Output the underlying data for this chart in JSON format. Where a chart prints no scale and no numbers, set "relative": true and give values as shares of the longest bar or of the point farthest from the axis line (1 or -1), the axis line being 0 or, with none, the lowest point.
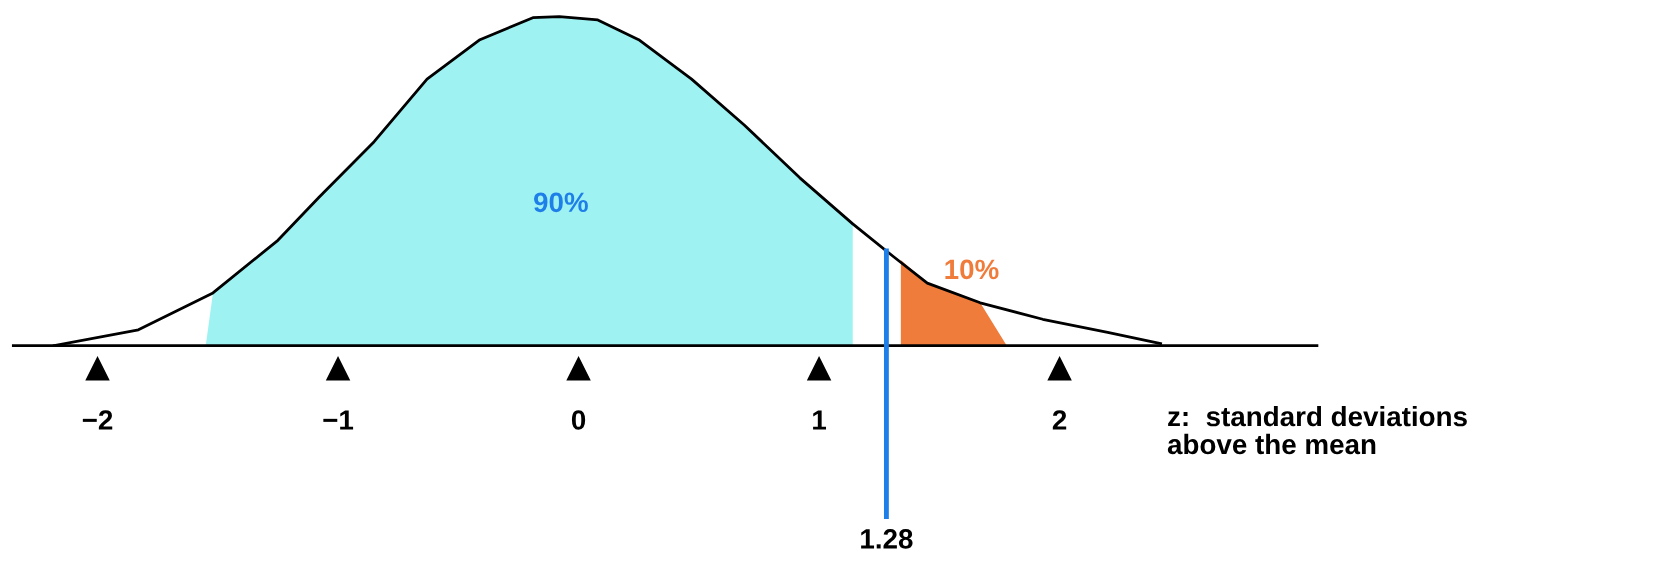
{
  "chart_data": {
    "type": "line",
    "relative": true,
    "xlabel": "z:  standard deviations\nabove the mean",
    "xlim": [
      -2.35,
      3.07
    ],
    "xticks": [
      {
        "value": -2,
        "label": "−2"
      },
      {
        "value": -1,
        "label": "−1"
      },
      0,
      1,
      2
    ],
    "series": [
      {
        "color": "#000000",
        "x": [
          -2.18,
          -1.83,
          -1.52,
          -1.25,
          -1.08,
          -0.85,
          -0.63,
          -0.41,
          -0.19,
          -0.08,
          0.08,
          0.25,
          0.47,
          0.69,
          0.92,
          1.14,
          1.31,
          1.45,
          1.67,
          1.93,
          2.2,
          2.42
        ],
        "values": [
          0,
          0.048,
          0.16,
          0.32,
          0.45,
          0.62,
          0.81,
          0.93,
          0.997,
          1.0,
          0.99,
          0.93,
          0.81,
          0.67,
          0.51,
          0.37,
          0.27,
          0.19,
          0.13,
          0.08,
          0.04,
          0.006
        ]
      },
      {
        "type": "area",
        "color": "#9ff2f2",
        "x": [
          -1.55,
          -1.52,
          -1.25,
          -1.08,
          -0.85,
          -0.63,
          -0.41,
          -0.19,
          -0.08,
          0.08,
          0.25,
          0.47,
          0.69,
          0.92,
          1.14
        ],
        "values": [
          0.0,
          0.16,
          0.32,
          0.45,
          0.62,
          0.81,
          0.93,
          0.997,
          1.0,
          0.99,
          0.93,
          0.81,
          0.67,
          0.51,
          0.37
        ]
      },
      {
        "type": "area",
        "color": "#f07c3c",
        "x": [
          1.34,
          1.45,
          1.67,
          1.78
        ],
        "values": [
          0.26,
          0.19,
          0.13,
          0.0
        ]
      }
    ],
    "ref_lines": [
      {
        "axis": "x",
        "value": 1.28,
        "label": "1.28",
        "color": "#1f7fe8"
      }
    ],
    "annotations": [
      "90%",
      "10%"
    ],
    "legend": false
  }
}
